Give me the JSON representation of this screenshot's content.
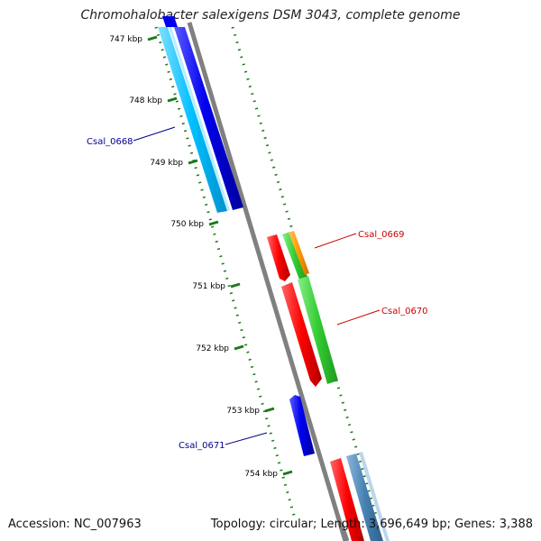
{
  "title": "Chromohalobacter salexigens DSM 3043, complete genome",
  "footer": {
    "accession": "Accession: NC_007963",
    "summary": "Topology: circular; Length: 3,696,649 bp; Genes: 3,388"
  },
  "ticks": [
    "747 kbp",
    "748 kbp",
    "749 kbp",
    "750 kbp",
    "751 kbp",
    "752 kbp",
    "753 kbp",
    "754 kbp"
  ],
  "genes": [
    {
      "label": "Csal_0668",
      "color": "#00008b"
    },
    {
      "label": "Csal_0669",
      "color": "#cc0000"
    },
    {
      "label": "Csal_0670",
      "color": "#cc0000"
    },
    {
      "label": "Csal_0671",
      "color": "#00008b"
    }
  ],
  "colors": {
    "backbone": "#808080",
    "tick": "#1a7a1a",
    "forward_cds": "#ff0000",
    "reverse_cds": "#0000ee",
    "light_blue": "#00bfff",
    "green": "#33cc33",
    "orange": "#ff9900",
    "steel_blue": "#4682b4"
  }
}
